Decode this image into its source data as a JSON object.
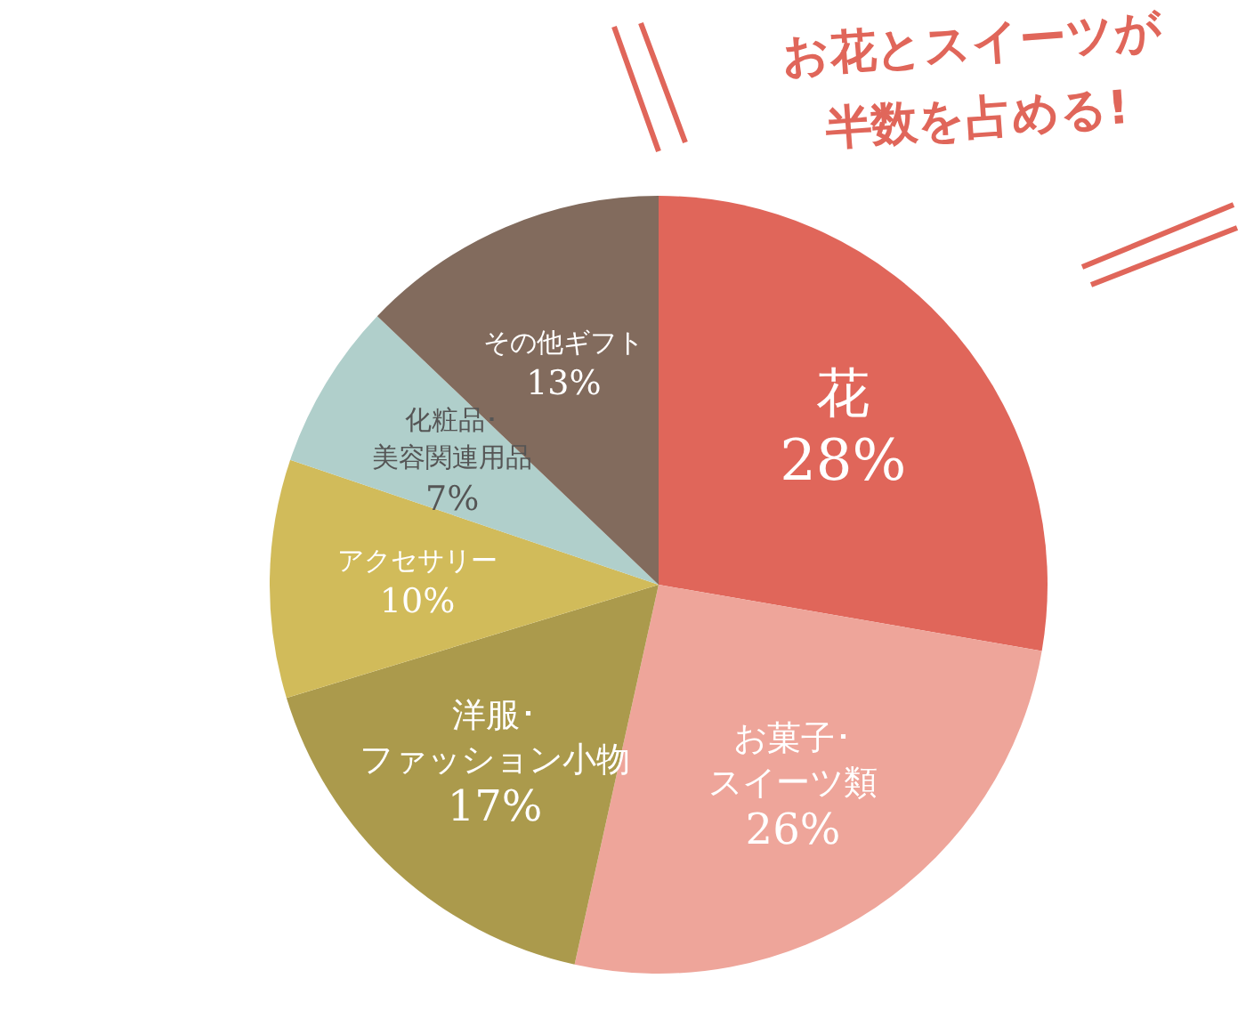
{
  "chart_data": {
    "type": "pie",
    "title": "お花とスイーツが半数を占める!",
    "categories": [
      "花",
      "お菓子･スイーツ類",
      "洋服･ファッション小物",
      "アクセサリー",
      "化粧品･美容関連用品",
      "その他ギフト"
    ],
    "values": [
      28,
      26,
      17,
      10,
      7,
      13
    ],
    "value_labels": [
      "28%",
      "26%",
      "17%",
      "10%",
      "7%",
      "13%"
    ],
    "colors": [
      "#e0665a",
      "#eea59a",
      "#ab9a4c",
      "#d1bb5a",
      "#b0cfcb",
      "#826b5d"
    ],
    "legend": false
  }
}
